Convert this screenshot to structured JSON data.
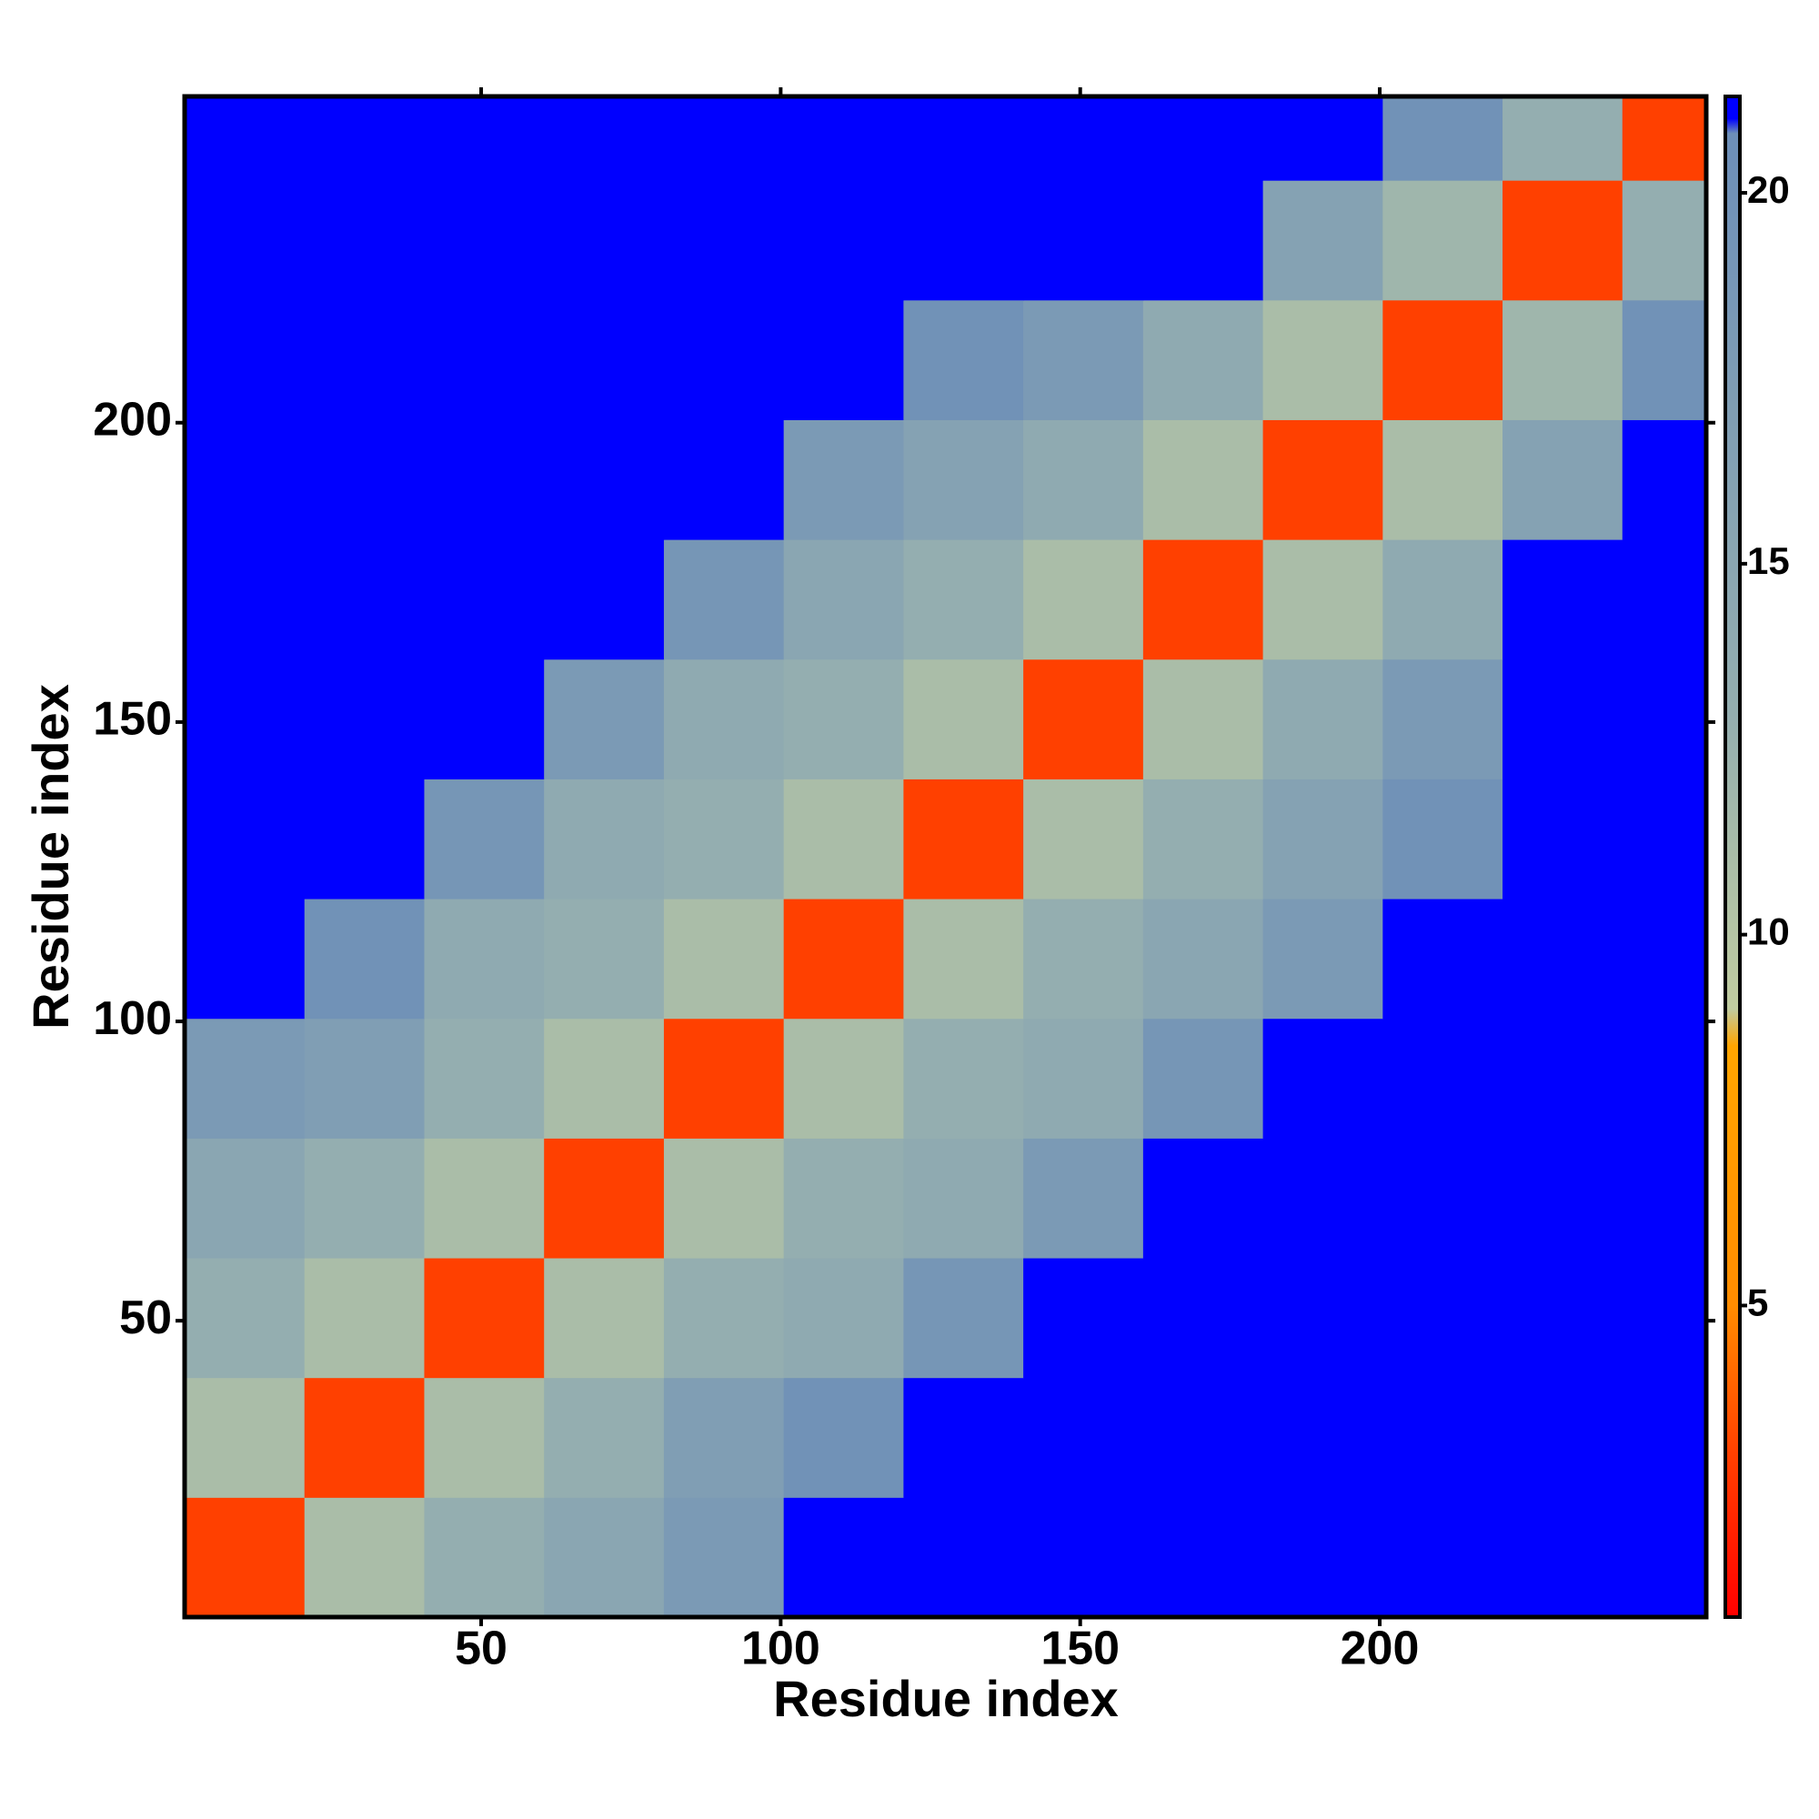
{
  "chart_data": {
    "type": "heatmap",
    "x_label": "Residue index",
    "y_label": "Residue index",
    "x_bins": [
      0.5,
      20.5,
      40.5,
      60.5,
      80.5,
      100.5,
      120.5,
      140.5,
      160.5,
      180.5,
      200.5,
      220.5,
      240.5,
      254.5
    ],
    "y_bins": [
      0.5,
      20.5,
      40.5,
      60.5,
      80.5,
      100.5,
      120.5,
      140.5,
      160.5,
      180.5,
      200.5,
      220.5,
      240.5,
      254.5
    ],
    "values": [
      [
        3,
        11,
        13,
        15,
        18,
        21,
        21,
        21,
        21,
        21,
        21,
        21,
        21
      ],
      [
        11,
        3,
        11,
        13,
        17,
        20,
        21,
        21,
        21,
        21,
        21,
        21,
        21
      ],
      [
        13,
        11,
        3,
        11,
        13,
        14,
        19,
        21,
        21,
        21,
        21,
        21,
        21
      ],
      [
        15,
        13,
        11,
        3,
        11,
        13,
        14,
        18,
        21,
        21,
        21,
        21,
        21
      ],
      [
        18,
        17,
        13,
        11,
        3,
        11,
        13,
        14,
        19,
        21,
        21,
        21,
        21
      ],
      [
        21,
        20,
        14,
        13,
        11,
        3,
        11,
        13,
        15,
        18,
        21,
        21,
        21
      ],
      [
        21,
        21,
        19,
        14,
        13,
        11,
        3,
        11,
        13,
        16,
        20,
        21,
        21
      ],
      [
        21,
        21,
        21,
        18,
        14,
        13,
        11,
        3,
        11,
        14,
        18,
        21,
        21
      ],
      [
        21,
        21,
        21,
        21,
        19,
        15,
        13,
        11,
        3,
        11,
        14,
        21,
        21
      ],
      [
        21,
        21,
        21,
        21,
        21,
        18,
        16,
        14,
        11,
        3,
        11,
        16,
        21
      ],
      [
        21,
        21,
        21,
        21,
        21,
        21,
        20,
        18,
        14,
        11,
        3,
        12,
        20
      ],
      [
        21,
        21,
        21,
        21,
        21,
        21,
        21,
        21,
        21,
        16,
        12,
        3,
        13
      ],
      [
        21,
        21,
        21,
        21,
        21,
        21,
        21,
        21,
        21,
        21,
        20,
        13,
        3
      ]
    ],
    "xlim": [
      0.5,
      254.5
    ],
    "ylim": [
      0.5,
      254.5
    ],
    "xticks": [
      50,
      100,
      150,
      200
    ],
    "yticks": [
      50,
      100,
      150,
      200
    ],
    "zlim": [
      0.8,
      21.3
    ],
    "zticks": [
      5,
      10,
      15,
      20
    ],
    "color_stops": [
      [
        0.8,
        "#ff0000"
      ],
      [
        3,
        "#ff4000"
      ],
      [
        5,
        "#ff8c00"
      ],
      [
        8.5,
        "#ffa500"
      ],
      [
        9,
        "#c0cca0"
      ],
      [
        13,
        "#94aeb0"
      ],
      [
        20.8,
        "#6d8fb8"
      ],
      [
        21,
        "#0000ff"
      ]
    ]
  }
}
